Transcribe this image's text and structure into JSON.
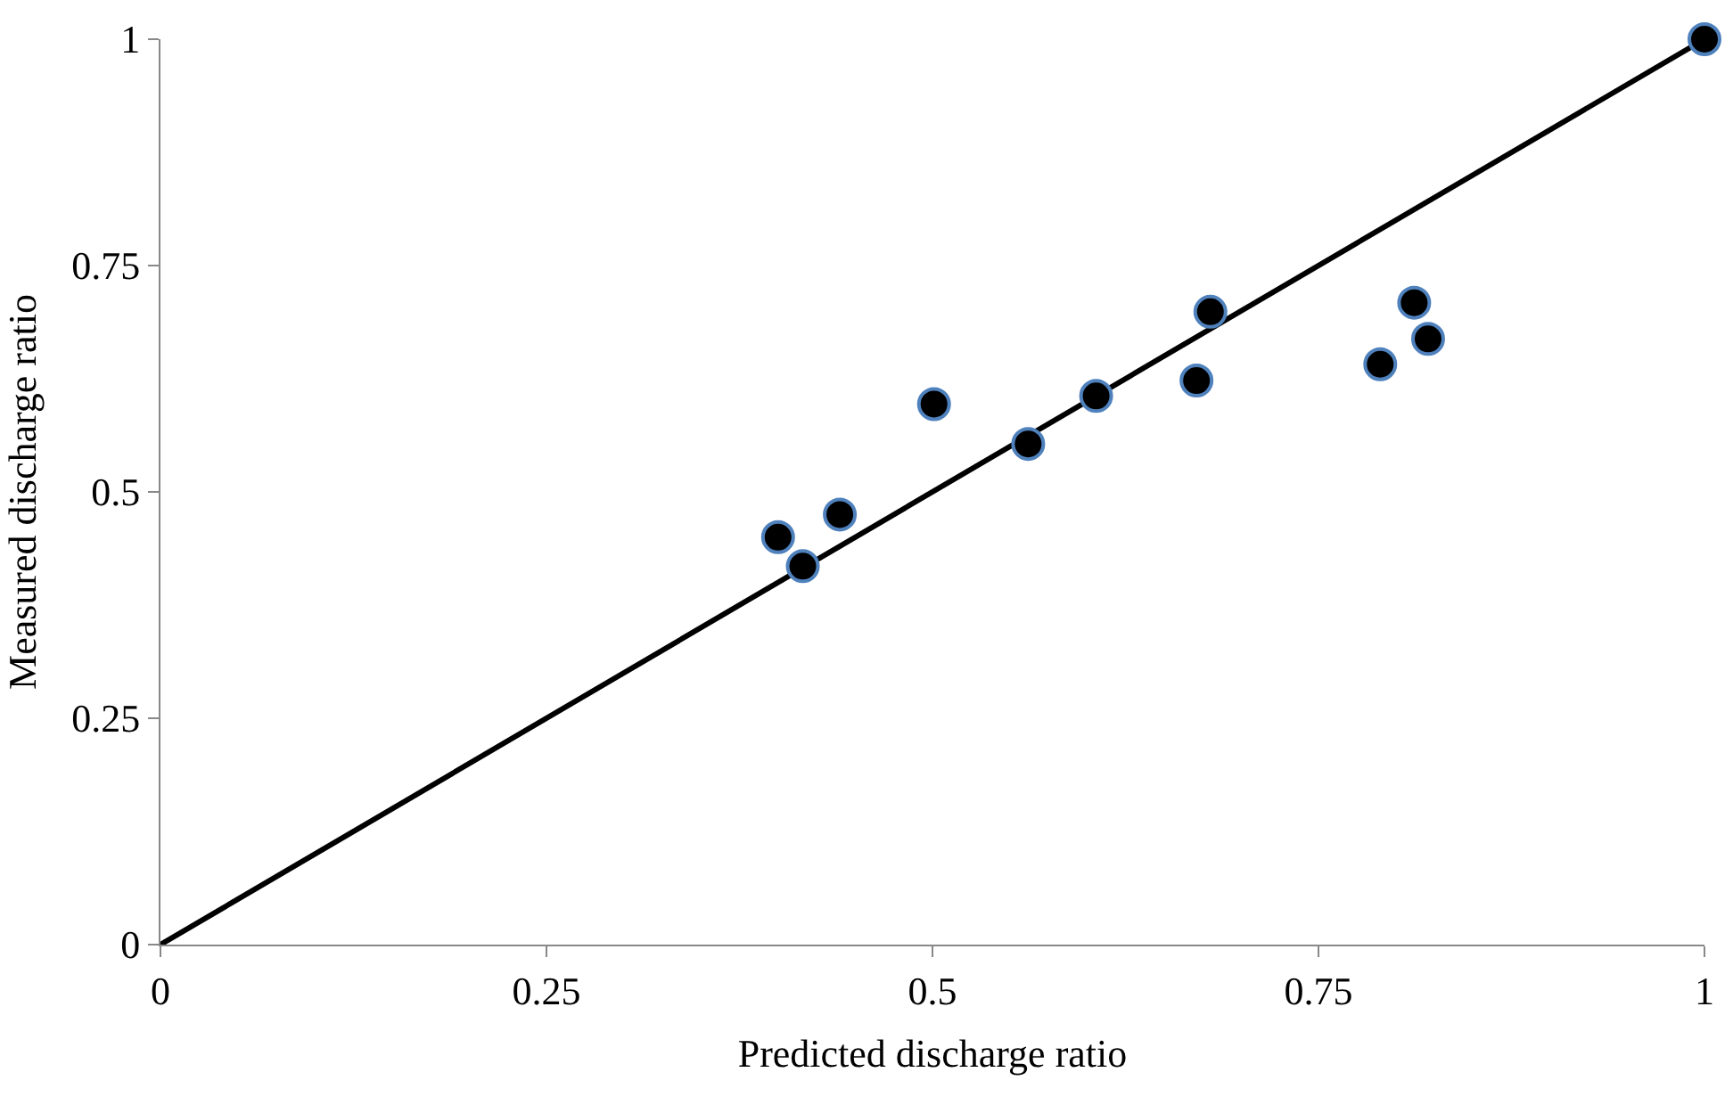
{
  "chart_data": {
    "type": "scatter",
    "xlabel": "Predicted discharge ratio",
    "ylabel": "Measured discharge ratio",
    "xlim": [
      0,
      1
    ],
    "ylim": [
      0,
      1
    ],
    "xticks": [
      0,
      0.25,
      0.5,
      0.75,
      1
    ],
    "yticks": [
      0,
      0.25,
      0.5,
      0.75,
      1
    ],
    "marker": "circle",
    "series": [
      {
        "color": "#000000",
        "x": [
          0.4,
          0.416,
          0.44,
          0.501,
          0.562,
          0.606,
          0.671,
          0.68,
          0.79,
          0.812,
          0.821,
          1
        ],
        "values": [
          0.45,
          0.418,
          0.475,
          0.597,
          0.553,
          0.606,
          0.623,
          0.699,
          0.641,
          0.709,
          0.669,
          1
        ]
      },
      {
        "type": "line",
        "color": "#000000",
        "x": [
          0,
          1
        ],
        "values": [
          0,
          1
        ],
        "line_style": "solid",
        "marker": "none"
      }
    ]
  }
}
